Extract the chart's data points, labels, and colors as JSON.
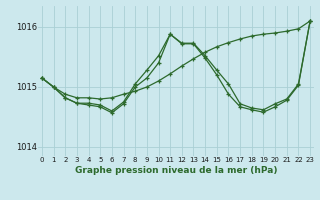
{
  "title": "Graphe pression niveau de la mer (hPa)",
  "bg_color": "#cce8ed",
  "grid_color": "#aacfd5",
  "line_color": "#2d6a2d",
  "x_ticks": [
    0,
    1,
    2,
    3,
    4,
    5,
    6,
    7,
    8,
    9,
    10,
    11,
    12,
    13,
    14,
    15,
    16,
    17,
    18,
    19,
    20,
    21,
    22,
    23
  ],
  "y_ticks": [
    1014,
    1015,
    1016
  ],
  "ylim": [
    1013.85,
    1016.35
  ],
  "xlim": [
    -0.3,
    23.3
  ],
  "line1": [
    1015.15,
    1015.0,
    1014.88,
    1014.82,
    1014.82,
    1014.8,
    1014.82,
    1014.88,
    1014.93,
    1015.0,
    1015.1,
    1015.22,
    1015.35,
    1015.47,
    1015.58,
    1015.67,
    1015.74,
    1015.8,
    1015.85,
    1015.88,
    1015.9,
    1015.93,
    1015.97,
    1016.1
  ],
  "line2": [
    1015.15,
    1015.0,
    1014.82,
    1014.73,
    1014.73,
    1014.7,
    1014.6,
    1014.75,
    1015.05,
    1015.28,
    1015.52,
    1015.88,
    1015.73,
    1015.73,
    1015.52,
    1015.28,
    1015.05,
    1014.72,
    1014.65,
    1014.62,
    1014.72,
    1014.8,
    1015.05,
    1016.1
  ],
  "line3": [
    1015.15,
    1015.0,
    1014.82,
    1014.73,
    1014.7,
    1014.67,
    1014.57,
    1014.72,
    1015.0,
    1015.15,
    1015.4,
    1015.88,
    1015.72,
    1015.72,
    1015.48,
    1015.2,
    1014.88,
    1014.67,
    1014.62,
    1014.58,
    1014.67,
    1014.78,
    1015.03,
    1016.1
  ]
}
